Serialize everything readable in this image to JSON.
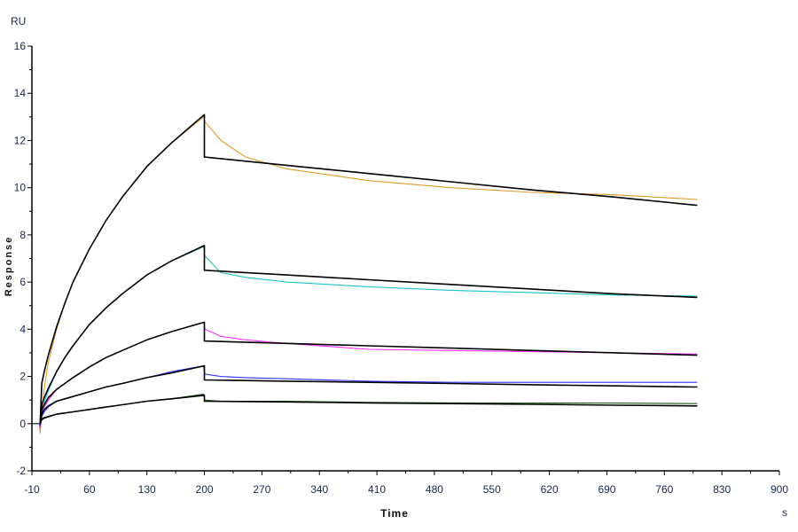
{
  "chart_data": {
    "type": "line",
    "title": "",
    "xlabel": "Time",
    "ylabel": "Response",
    "x_unit": "s",
    "y_unit": "RU",
    "xlim": [
      -10,
      900
    ],
    "ylim": [
      -2,
      16
    ],
    "x_ticks": [
      -10,
      60,
      130,
      200,
      270,
      340,
      410,
      480,
      550,
      620,
      690,
      760,
      830,
      900
    ],
    "y_ticks": [
      -2,
      0,
      2,
      4,
      6,
      8,
      10,
      12,
      14,
      16
    ],
    "grid": false,
    "legend": "none",
    "series": [
      {
        "color": "#e09a2a",
        "role": "data",
        "x": [
          -10,
          -1,
          0,
          2,
          5,
          10,
          20,
          30,
          40,
          60,
          80,
          100,
          130,
          160,
          199,
          200.5,
          220,
          250,
          300,
          400,
          500,
          600,
          700,
          800
        ],
        "y": [
          0,
          0,
          -0.4,
          0.5,
          1.5,
          2.6,
          4.0,
          5.1,
          6.0,
          7.4,
          8.6,
          9.6,
          10.9,
          11.9,
          13.0,
          12.8,
          12.0,
          11.3,
          10.8,
          10.3,
          10.0,
          9.8,
          9.7,
          9.5
        ]
      },
      {
        "color": "#20c0c8",
        "role": "data",
        "x": [
          -10,
          -1,
          0,
          2,
          5,
          10,
          20,
          30,
          40,
          60,
          80,
          100,
          130,
          160,
          199,
          200.5,
          220,
          250,
          300,
          400,
          500,
          600,
          700,
          800
        ],
        "y": [
          0,
          0,
          -0.2,
          0.5,
          0.9,
          1.4,
          2.2,
          2.8,
          3.3,
          4.2,
          4.9,
          5.5,
          6.3,
          6.9,
          7.5,
          7.1,
          6.4,
          6.2,
          6.0,
          5.8,
          5.65,
          5.55,
          5.45,
          5.4
        ]
      },
      {
        "color": "#ff30ff",
        "role": "data",
        "x": [
          -10,
          -1,
          0,
          2,
          5,
          10,
          20,
          30,
          40,
          60,
          80,
          100,
          130,
          160,
          199,
          200.5,
          220,
          250,
          300,
          400,
          500,
          600,
          700,
          800
        ],
        "y": [
          0,
          0,
          -0.2,
          0.4,
          0.7,
          1.0,
          1.45,
          1.7,
          1.95,
          2.4,
          2.8,
          3.1,
          3.55,
          3.9,
          4.3,
          4.0,
          3.7,
          3.55,
          3.4,
          3.15,
          3.1,
          3.05,
          3.0,
          2.95
        ]
      },
      {
        "color": "#3030ff",
        "role": "data",
        "x": [
          -10,
          -1,
          0,
          2,
          5,
          10,
          20,
          30,
          40,
          60,
          80,
          100,
          130,
          160,
          199,
          200.5,
          220,
          250,
          300,
          400,
          500,
          600,
          700,
          800
        ],
        "y": [
          0,
          0,
          -0.1,
          0.3,
          0.5,
          0.7,
          0.95,
          1.05,
          1.15,
          1.35,
          1.55,
          1.7,
          1.95,
          2.2,
          2.45,
          2.1,
          2.0,
          1.95,
          1.9,
          1.8,
          1.75,
          1.75,
          1.75,
          1.75
        ]
      },
      {
        "color": "#1c5a1c",
        "role": "data",
        "x": [
          -10,
          -1,
          0,
          2,
          5,
          10,
          20,
          30,
          40,
          60,
          80,
          100,
          130,
          160,
          199,
          200.5,
          220,
          250,
          300,
          400,
          500,
          600,
          700,
          800
        ],
        "y": [
          0,
          0,
          0,
          0.15,
          0.22,
          0.28,
          0.4,
          0.45,
          0.5,
          0.6,
          0.7,
          0.8,
          0.95,
          1.05,
          1.25,
          1.0,
          0.95,
          0.95,
          0.95,
          0.9,
          0.88,
          0.87,
          0.87,
          0.85
        ]
      },
      {
        "color": "#000000",
        "role": "fit",
        "x": [
          0,
          2,
          5,
          10,
          20,
          30,
          40,
          60,
          80,
          100,
          130,
          160,
          200,
          200,
          300,
          400,
          500,
          600,
          700,
          800
        ],
        "y": [
          0,
          1.7,
          2.2,
          2.9,
          4.1,
          5.1,
          6.0,
          7.4,
          8.6,
          9.6,
          10.9,
          11.9,
          13.1,
          11.3,
          10.95,
          10.6,
          10.25,
          9.9,
          9.6,
          9.25
        ]
      },
      {
        "color": "#000000",
        "role": "fit",
        "x": [
          0,
          2,
          5,
          10,
          20,
          30,
          40,
          60,
          80,
          100,
          130,
          160,
          200,
          200,
          300,
          400,
          500,
          600,
          700,
          800
        ],
        "y": [
          0,
          0.8,
          1.1,
          1.5,
          2.2,
          2.8,
          3.3,
          4.2,
          4.9,
          5.5,
          6.3,
          6.9,
          7.55,
          6.5,
          6.3,
          6.1,
          5.9,
          5.7,
          5.5,
          5.35
        ]
      },
      {
        "color": "#000000",
        "role": "fit",
        "x": [
          0,
          2,
          5,
          10,
          20,
          30,
          40,
          60,
          80,
          100,
          130,
          160,
          200,
          200,
          300,
          400,
          500,
          600,
          700,
          800
        ],
        "y": [
          0,
          0.6,
          0.8,
          1.1,
          1.45,
          1.7,
          1.95,
          2.4,
          2.8,
          3.1,
          3.55,
          3.9,
          4.3,
          3.5,
          3.4,
          3.3,
          3.2,
          3.1,
          3.0,
          2.9
        ]
      },
      {
        "color": "#000000",
        "role": "fit",
        "x": [
          0,
          2,
          5,
          10,
          20,
          30,
          40,
          60,
          80,
          100,
          130,
          160,
          200,
          200,
          300,
          400,
          500,
          600,
          700,
          800
        ],
        "y": [
          0,
          0.4,
          0.6,
          0.75,
          0.95,
          1.05,
          1.15,
          1.35,
          1.55,
          1.7,
          1.95,
          2.15,
          2.45,
          1.85,
          1.8,
          1.75,
          1.7,
          1.65,
          1.6,
          1.55
        ]
      },
      {
        "color": "#000000",
        "role": "fit",
        "x": [
          0,
          2,
          5,
          10,
          20,
          30,
          40,
          60,
          80,
          100,
          130,
          160,
          200,
          200,
          300,
          400,
          500,
          600,
          700,
          800
        ],
        "y": [
          0,
          0.2,
          0.25,
          0.3,
          0.4,
          0.45,
          0.5,
          0.6,
          0.7,
          0.8,
          0.95,
          1.05,
          1.2,
          0.95,
          0.92,
          0.88,
          0.85,
          0.82,
          0.78,
          0.75
        ]
      }
    ]
  }
}
